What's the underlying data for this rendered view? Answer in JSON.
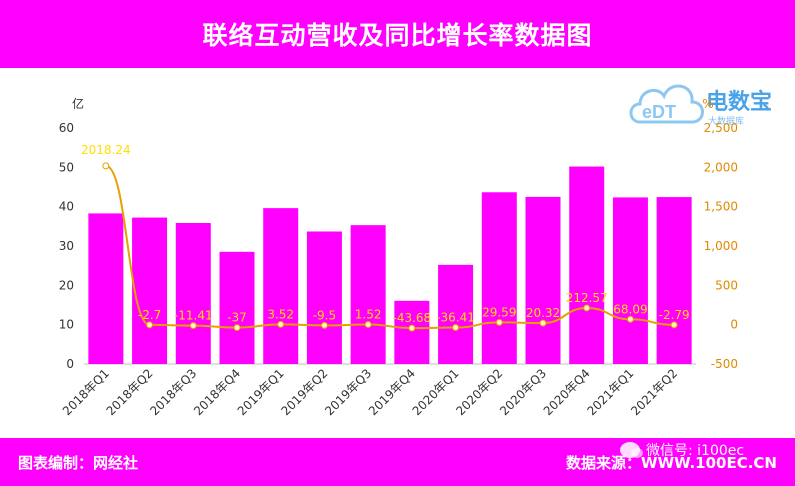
{
  "header": {
    "title": "联络互动营收及同比增长率数据图"
  },
  "footer": {
    "credit": "图表编制：网经社",
    "source": "数据来源：WWW.100EC.CN"
  },
  "watermark": {
    "logo_name": "电数宝",
    "logo_sub": "大数据库",
    "wechat": "微信号: i100ec"
  },
  "colors": {
    "bar": "#ff00ff",
    "line": "#e6a000",
    "bar_label": "#ff00ff",
    "pct_label": "#ffdd00",
    "right_axis": "#e08a00"
  },
  "chart_data": {
    "type": "bar",
    "categories": [
      "2018年Q1",
      "2018年Q2",
      "2018年Q3",
      "2018年Q4",
      "2019年Q1",
      "2019年Q2",
      "2019年Q3",
      "2019年Q4",
      "2020年Q1",
      "2020年Q2",
      "2020年Q3",
      "2020年Q4",
      "2021年Q1",
      "2021年Q2"
    ],
    "series": [
      {
        "type": "bar",
        "axis": "left",
        "values": [
          38.28,
          37.23,
          35.85,
          28.52,
          39.63,
          33.69,
          35.3,
          16.06,
          25.2,
          43.66,
          42.48,
          50.2,
          42.35,
          42.44
        ]
      },
      {
        "type": "line",
        "axis": "right",
        "values": [
          2018.24,
          -2.7,
          -11.41,
          -37,
          3.52,
          -9.5,
          1.52,
          -43.68,
          -36.41,
          29.59,
          20.32,
          212.57,
          68.09,
          -2.79
        ],
        "labels": [
          "2018.24",
          "-2.7",
          "-11.41",
          "-37",
          "3.52",
          "-9.5",
          "1.52",
          "-43.68",
          "-36.41",
          "29.59",
          "20.32",
          "212.57",
          "68.09",
          "-2.79"
        ]
      }
    ],
    "bar_labels": [
      "38.28",
      "37.23",
      "35.85",
      "28.52",
      "39.63",
      "33.69",
      "35.3",
      "16.06",
      "25.2",
      "43.66",
      "42.48",
      "50.2",
      "42.35",
      "42.44"
    ],
    "y_left": {
      "unit": "亿",
      "min": 0,
      "max": 60,
      "ticks": [
        "0",
        "10",
        "20",
        "30",
        "40",
        "50",
        "60"
      ]
    },
    "y_right": {
      "unit": "%",
      "min": -500,
      "max": 2500,
      "ticks": [
        "-500",
        "0",
        "500",
        "1,000",
        "1,500",
        "2,000",
        "2,500"
      ]
    },
    "grid": false,
    "legend": "none"
  }
}
